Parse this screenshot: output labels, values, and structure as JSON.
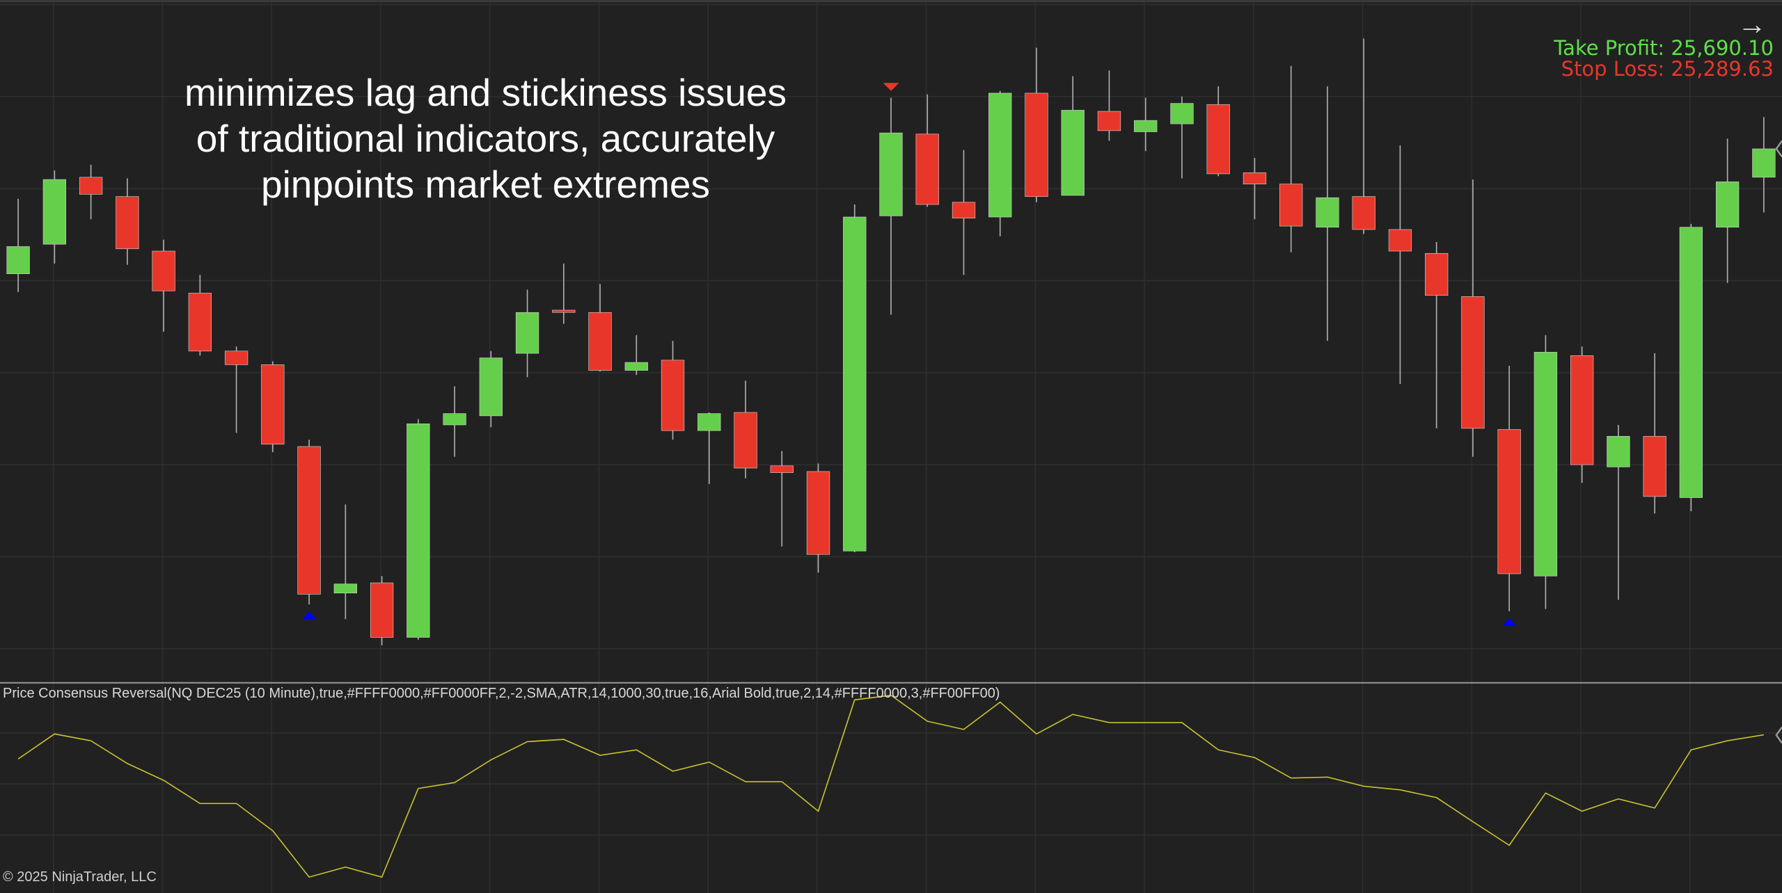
{
  "chart_data": {
    "type": "candlestick",
    "title": "",
    "instrument": "NQ DEC25 (10 Minute)",
    "grid": true,
    "colors": {
      "up": "#65CF4B",
      "down": "#E8372A",
      "background": "#212121",
      "wick": "#B0B0B0",
      "oscillator": "#C8C030",
      "signal_up": "#0000FF",
      "signal_down": "#E8372A"
    },
    "candles": [
      {
        "o": 25559,
        "h": 25625,
        "l": 25543,
        "c": 25583
      },
      {
        "o": 25585,
        "h": 25650,
        "l": 25568,
        "c": 25642
      },
      {
        "o": 25644,
        "h": 25655,
        "l": 25607,
        "c": 25629
      },
      {
        "o": 25627,
        "h": 25643,
        "l": 25567,
        "c": 25581
      },
      {
        "o": 25579,
        "h": 25589,
        "l": 25508,
        "c": 25544
      },
      {
        "o": 25542,
        "h": 25558,
        "l": 25487,
        "c": 25491
      },
      {
        "o": 25491,
        "h": 25495,
        "l": 25419,
        "c": 25479
      },
      {
        "o": 25479,
        "h": 25482,
        "l": 25402,
        "c": 25409
      },
      {
        "o": 25407,
        "h": 25413,
        "l": 25268,
        "c": 25277
      },
      {
        "o": 25278,
        "h": 25356,
        "l": 25255,
        "c": 25286
      },
      {
        "o": 25287,
        "h": 25293,
        "l": 25232,
        "c": 25239
      },
      {
        "o": 25239,
        "h": 25431,
        "l": 25237,
        "c": 25427
      },
      {
        "o": 25426,
        "h": 25460,
        "l": 25398,
        "c": 25436
      },
      {
        "o": 25434,
        "h": 25491,
        "l": 25424,
        "c": 25485
      },
      {
        "o": 25489,
        "h": 25545,
        "l": 25468,
        "c": 25525
      },
      {
        "o": 25527,
        "h": 25568,
        "l": 25515,
        "c": 25525
      },
      {
        "o": 25525,
        "h": 25550,
        "l": 25473,
        "c": 25474
      },
      {
        "o": 25474,
        "h": 25505,
        "l": 25470,
        "c": 25481
      },
      {
        "o": 25483,
        "h": 25500,
        "l": 25413,
        "c": 25421
      },
      {
        "o": 25421,
        "h": 25437,
        "l": 25374,
        "c": 25436
      },
      {
        "o": 25437,
        "h": 25465,
        "l": 25379,
        "c": 25388
      },
      {
        "o": 25390,
        "h": 25403,
        "l": 25319,
        "c": 25384
      },
      {
        "o": 25385,
        "h": 25392,
        "l": 25296,
        "c": 25312
      },
      {
        "o": 25315,
        "h": 25620,
        "l": 25314,
        "c": 25609
      },
      {
        "o": 25610,
        "h": 25714,
        "l": 25523,
        "c": 25683
      },
      {
        "o": 25682,
        "h": 25717,
        "l": 25618,
        "c": 25620
      },
      {
        "o": 25622,
        "h": 25668,
        "l": 25558,
        "c": 25608
      },
      {
        "o": 25609,
        "h": 25720,
        "l": 25592,
        "c": 25718
      },
      {
        "o": 25718,
        "h": 25758,
        "l": 25622,
        "c": 25627
      },
      {
        "o": 25628,
        "h": 25733,
        "l": 25628,
        "c": 25703
      },
      {
        "o": 25702,
        "h": 25738,
        "l": 25676,
        "c": 25685
      },
      {
        "o": 25684,
        "h": 25714,
        "l": 25667,
        "c": 25694
      },
      {
        "o": 25691,
        "h": 25715,
        "l": 25643,
        "c": 25709
      },
      {
        "o": 25708,
        "h": 25724,
        "l": 25645,
        "c": 25647
      },
      {
        "o": 25648,
        "h": 25661,
        "l": 25607,
        "c": 25638
      },
      {
        "o": 25638,
        "h": 25742,
        "l": 25578,
        "c": 25601
      },
      {
        "o": 25600,
        "h": 25724,
        "l": 25500,
        "c": 25626
      },
      {
        "o": 25627,
        "h": 25766,
        "l": 25594,
        "c": 25598
      },
      {
        "o": 25598,
        "h": 25672,
        "l": 25462,
        "c": 25579
      },
      {
        "o": 25577,
        "h": 25587,
        "l": 25423,
        "c": 25540
      },
      {
        "o": 25539,
        "h": 25642,
        "l": 25398,
        "c": 25423
      },
      {
        "o": 25422,
        "h": 25478,
        "l": 25262,
        "c": 25295
      },
      {
        "o": 25293,
        "h": 25505,
        "l": 25264,
        "c": 25490
      },
      {
        "o": 25487,
        "h": 25495,
        "l": 25375,
        "c": 25391
      },
      {
        "o": 25389,
        "h": 25426,
        "l": 25272,
        "c": 25416
      },
      {
        "o": 25416,
        "h": 25489,
        "l": 25348,
        "c": 25363
      },
      {
        "o": 25362,
        "h": 25603,
        "l": 25350,
        "c": 25600
      },
      {
        "o": 25600,
        "h": 25678,
        "l": 25551,
        "c": 25640
      },
      {
        "o": 25644,
        "h": 25697,
        "l": 25613,
        "c": 25669
      }
    ],
    "signals": [
      {
        "index": 8,
        "type": "buy",
        "shape": "triangle-up"
      },
      {
        "index": 24,
        "type": "sell",
        "shape": "triangle-down"
      },
      {
        "index": 41,
        "type": "buy",
        "shape": "triangle-up"
      }
    ],
    "oscillator": {
      "name": "Price Consensus Reversal",
      "values": [
        0.55,
        1.1,
        0.95,
        0.45,
        0.08,
        -0.43,
        -0.43,
        -1.03,
        -2.05,
        -1.83,
        -2.05,
        -0.1,
        0.03,
        0.53,
        0.93,
        0.98,
        0.63,
        0.75,
        0.28,
        0.48,
        0.05,
        0.05,
        -0.6,
        1.85,
        1.95,
        1.38,
        1.2,
        1.8,
        1.1,
        1.53,
        1.35,
        1.35,
        1.35,
        0.75,
        0.58,
        0.13,
        0.15,
        -0.05,
        -0.13,
        -0.3,
        -0.83,
        -1.35,
        -0.2,
        -0.6,
        -0.33,
        -0.53,
        0.75,
        0.95,
        1.08
      ]
    }
  },
  "annotation": {
    "lines": [
      "minimizes lag and stickiness issues",
      "of traditional indicators, accurately",
      "pinpoints market extremes"
    ]
  },
  "trade_info": {
    "take_profit": "Take Profit: 25,690.10",
    "stop_loss": "Stop Loss: 25,289.63",
    "arrow_icon": "arrow-right-icon"
  },
  "indicator_label": "Price Consensus Reversal(NQ DEC25 (10 Minute),true,#FFFF0000,#FF0000FF,2,-2,SMA,ATR,14,1000,30,true,16,Arial Bold,true,2,14,#FFFF0000,3,#FF00FF00)",
  "copyright": "© 2025 NinjaTrader, LLC"
}
